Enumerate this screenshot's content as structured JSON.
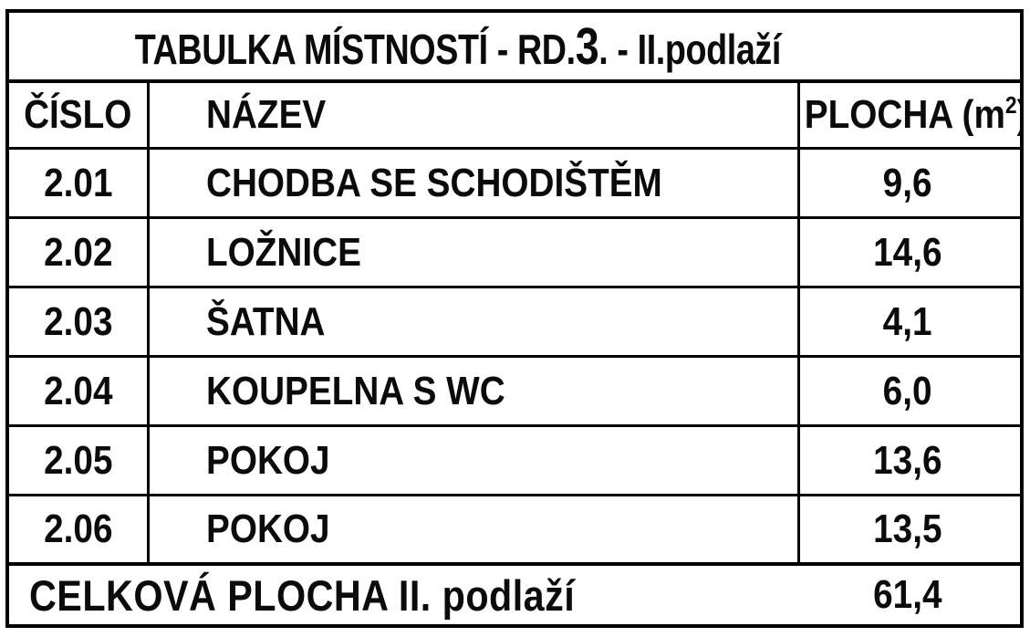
{
  "table": {
    "title": {
      "prefix": "TABULKA MÍSTNOSTÍ - RD.",
      "emphasis": "3",
      "suffix": ". - II.podlaží"
    },
    "columns": {
      "number": "ČÍSLO",
      "name": "NÁZEV",
      "area_prefix": "PLOCHA (m",
      "area_sup": "2",
      "area_suffix": ")"
    },
    "rows": [
      {
        "number": "2.01",
        "name": "CHODBA SE SCHODIŠTĚM",
        "area": "9,6"
      },
      {
        "number": "2.02",
        "name": "LOŽNICE",
        "area": "14,6"
      },
      {
        "number": "2.03",
        "name": "ŠATNA",
        "area": "4,1"
      },
      {
        "number": "2.04",
        "name": "KOUPELNA S WC",
        "area": "6,0"
      },
      {
        "number": "2.05",
        "name": "POKOJ",
        "area": "13,6"
      },
      {
        "number": "2.06",
        "name": "POKOJ",
        "area": "13,5"
      }
    ],
    "footer": {
      "label": "CELKOVÁ PLOCHA II. podlaží",
      "value": "61,4"
    }
  },
  "colors": {
    "border": "#000000",
    "background": "#ffffff",
    "text": "#0b0b0b"
  }
}
